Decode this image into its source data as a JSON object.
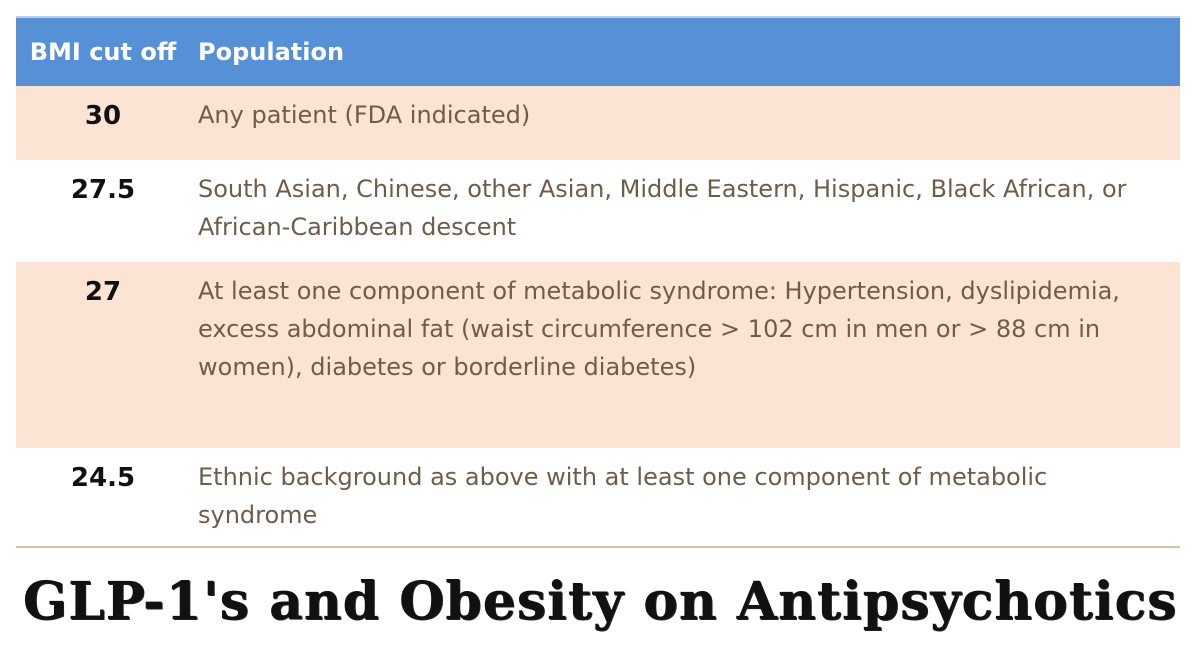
{
  "table": {
    "headers": {
      "bmi_cut_off": "BMI cut off",
      "population": "Population"
    },
    "rows": [
      {
        "cut_off": "30",
        "population": "Any patient (FDA indicated)"
      },
      {
        "cut_off": "27.5",
        "population": "South Asian, Chinese, other Asian, Middle Eastern, Hispanic, Black African, or African-Caribbean descent"
      },
      {
        "cut_off": "27",
        "population": "At least one component of metabolic syndrome: Hypertension, dyslipidemia, excess abdominal fat (waist circumference > 102 cm in men or > 88 cm in women), diabetes or borderline diabetes)"
      },
      {
        "cut_off": "24.5",
        "population": "Ethnic background as above with at least one component of metabolic syndrome"
      }
    ]
  },
  "footer": {
    "title": "GLP-1's and Obesity on Antipsychotics"
  },
  "colors": {
    "header_bg": "#5690d6",
    "shaded_row_bg": "#fce4d5",
    "population_text": "#6e5d4a",
    "cut_off_text": "#111111"
  }
}
